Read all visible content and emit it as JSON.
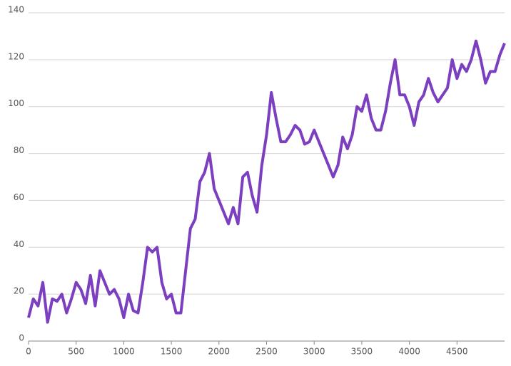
{
  "chart_data": {
    "type": "line",
    "x": [
      0,
      50,
      100,
      150,
      200,
      250,
      300,
      350,
      400,
      450,
      500,
      550,
      600,
      650,
      700,
      750,
      800,
      850,
      900,
      950,
      1000,
      1050,
      1100,
      1150,
      1200,
      1250,
      1300,
      1350,
      1400,
      1450,
      1500,
      1550,
      1600,
      1650,
      1700,
      1750,
      1800,
      1850,
      1900,
      1950,
      2000,
      2050,
      2100,
      2150,
      2200,
      2250,
      2300,
      2350,
      2400,
      2450,
      2500,
      2550,
      2600,
      2650,
      2700,
      2750,
      2800,
      2850,
      2900,
      2950,
      3000,
      3050,
      3100,
      3150,
      3200,
      3250,
      3300,
      3350,
      3400,
      3450,
      3500,
      3550,
      3600,
      3650,
      3700,
      3750,
      3800,
      3850,
      3900,
      3950,
      4000,
      4050,
      4100,
      4150,
      4200,
      4250,
      4300,
      4350,
      4400,
      4450,
      4500,
      4550,
      4600,
      4650,
      4700,
      4750,
      4800,
      4850,
      4900,
      4950,
      5000
    ],
    "series": [
      {
        "color": "#7b3fbf",
        "values": [
          10,
          18,
          15,
          25,
          8,
          18,
          17,
          20,
          12,
          18,
          25,
          22,
          16,
          28,
          15,
          30,
          25,
          20,
          22,
          18,
          10,
          20,
          13,
          12,
          25,
          40,
          38,
          40,
          25,
          18,
          20,
          12,
          12,
          30,
          48,
          52,
          68,
          72,
          80,
          65,
          60,
          55,
          50,
          57,
          50,
          70,
          72,
          62,
          55,
          75,
          88,
          106,
          95,
          85,
          85,
          88,
          92,
          90,
          84,
          85,
          90,
          85,
          80,
          75,
          70,
          75,
          87,
          82,
          88,
          100,
          98,
          105,
          95,
          90,
          90,
          98,
          110,
          120,
          105,
          105,
          100,
          92,
          102,
          105,
          112,
          106,
          102,
          105,
          108,
          120,
          112,
          118,
          115,
          120,
          128,
          120,
          110,
          115,
          115,
          122,
          127
        ]
      }
    ],
    "xlim": [
      0,
      5000
    ],
    "xticks": [
      0,
      500,
      1000,
      1500,
      2000,
      2500,
      3000,
      3500,
      4000,
      4500
    ],
    "ylim": [
      0,
      140
    ],
    "yticks": [
      0,
      20,
      40,
      60,
      80,
      100,
      120,
      140
    ],
    "grid": true
  }
}
